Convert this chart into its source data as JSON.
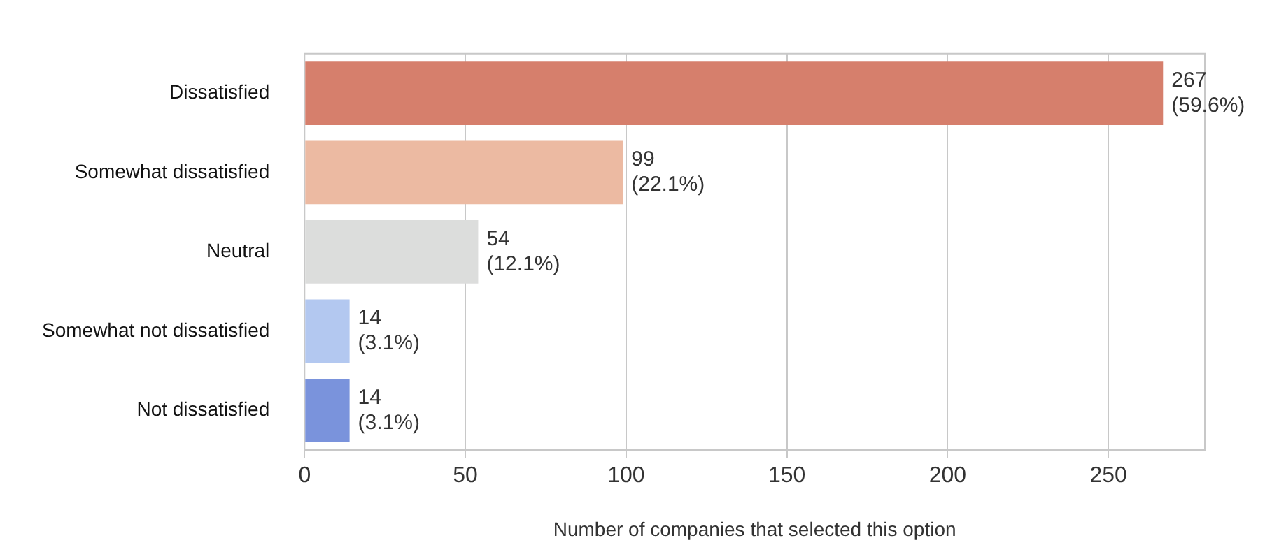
{
  "chart_data": {
    "type": "bar",
    "orientation": "horizontal",
    "xlabel": "Number of companies that selected this option",
    "categories": [
      "Dissatisfied",
      "Somewhat dissatisfied",
      "Neutral",
      "Somewhat not dissatisfied",
      "Not dissatisfied"
    ],
    "values": [
      267,
      99,
      54,
      14,
      14
    ],
    "colors": [
      "#d67f6c",
      "#ecbaa2",
      "#dcdddc",
      "#b3c8f0",
      "#7a93dc"
    ],
    "value_labels": [
      "267\n(59.6%)",
      "99\n(22.1%)",
      "54\n(12.1%)",
      "14\n(3.1%)",
      "14\n(3.1%)"
    ],
    "xlim": [
      0,
      280
    ],
    "xticks": [
      0,
      50,
      100,
      150,
      200,
      250
    ],
    "grid": "x"
  }
}
